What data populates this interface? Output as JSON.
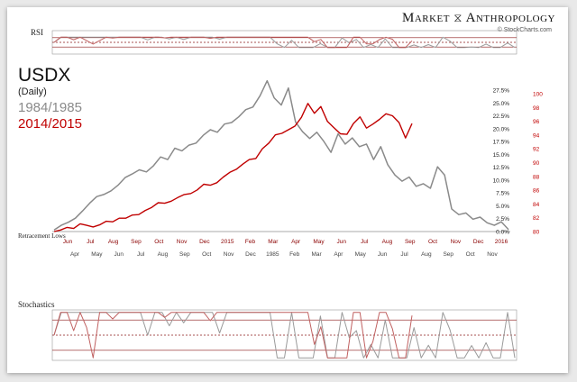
{
  "brand": {
    "left": "Market",
    "right": "Anthropology",
    "credit": "© StockCharts.com"
  },
  "title": "USDX",
  "subtitle": "(Daily)",
  "legend": [
    {
      "label": "1984/1985",
      "color": "#8a8a8a"
    },
    {
      "label": "2014/2015",
      "color": "#c00000"
    }
  ],
  "panel_labels": {
    "rsi": "RSI",
    "stoch": "Stochastics",
    "retracement": "Retracement Lows"
  },
  "chart_data": {
    "type": "line",
    "top_axis_labels": [
      "Jun",
      "Jul",
      "Aug",
      "Sep",
      "Oct",
      "Nov",
      "Dec",
      "2015",
      "Feb",
      "Mar",
      "Apr",
      "May",
      "Jun",
      "Jul",
      "Aug",
      "Sep",
      "Oct",
      "Nov",
      "Dec",
      "2016"
    ],
    "bottom_axis_labels": [
      "Apr",
      "May",
      "Jun",
      "Jul",
      "Aug",
      "Sep",
      "Oct",
      "Nov",
      "Dec",
      "1985",
      "Feb",
      "Mar",
      "Apr",
      "May",
      "Jun",
      "Jul",
      "Aug",
      "Sep",
      "Oct",
      "Nov"
    ],
    "pct_axis": {
      "labels": [
        "27.5%",
        "25.0%",
        "22.5%",
        "20.0%",
        "17.5%",
        "15.0%",
        "12.5%",
        "10.0%",
        "7.5%",
        "5.0%",
        "2.5%",
        "0.0%"
      ],
      "range": [
        0,
        27.5
      ]
    },
    "price_axis": {
      "labels": [
        "100",
        "98",
        "96",
        "94",
        "92",
        "90",
        "88",
        "86",
        "84",
        "82",
        "80"
      ],
      "range": [
        80,
        100
      ]
    },
    "series": [
      {
        "name": "1984/1985",
        "unit": "pct_gain",
        "color": "#8a8a8a",
        "values": [
          0.3,
          1.2,
          1.8,
          2.6,
          4.0,
          5.5,
          6.8,
          7.2,
          7.9,
          9.0,
          10.5,
          11.2,
          12.0,
          11.6,
          12.8,
          14.5,
          14.0,
          16.2,
          15.7,
          16.8,
          17.2,
          18.7,
          19.8,
          19.3,
          20.9,
          21.2,
          22.3,
          23.7,
          24.2,
          26.4,
          29.3,
          26.0,
          24.6,
          27.9,
          21.3,
          19.4,
          18.1,
          19.3,
          17.5,
          15.4,
          19.0,
          17.0,
          18.2,
          16.5,
          17.0,
          14.0,
          16.5,
          13.0,
          11.0,
          9.8,
          10.6,
          8.8,
          9.3,
          8.4,
          12.6,
          11.0,
          4.4,
          3.3,
          3.6,
          2.4,
          2.8,
          1.7,
          1.2,
          1.9,
          0.4
        ]
      },
      {
        "name": "2014/2015",
        "unit": "pct_gain",
        "color": "#c00000",
        "values": [
          0.0,
          0.3,
          0.8,
          0.6,
          1.5,
          1.2,
          0.9,
          1.3,
          2.0,
          1.9,
          2.6,
          2.6,
          3.2,
          3.3,
          4.1,
          4.7,
          5.6,
          5.5,
          5.9,
          6.6,
          7.2,
          7.4,
          8.1,
          9.2,
          9.0,
          9.5,
          10.6,
          11.5,
          12.1,
          13.1,
          14.0,
          14.2,
          16.1,
          17.2,
          18.8,
          19.1,
          19.8,
          20.5,
          22.2,
          24.9,
          23.0,
          24.3,
          21.4,
          20.2,
          19.0,
          18.9,
          21.0,
          22.3,
          20.1,
          20.9,
          21.8,
          22.9,
          22.5,
          21.2,
          18.2,
          21.0
        ]
      }
    ],
    "rsi_levels": [
      70,
      50,
      30
    ],
    "stoch_levels": [
      80,
      50,
      20
    ]
  }
}
